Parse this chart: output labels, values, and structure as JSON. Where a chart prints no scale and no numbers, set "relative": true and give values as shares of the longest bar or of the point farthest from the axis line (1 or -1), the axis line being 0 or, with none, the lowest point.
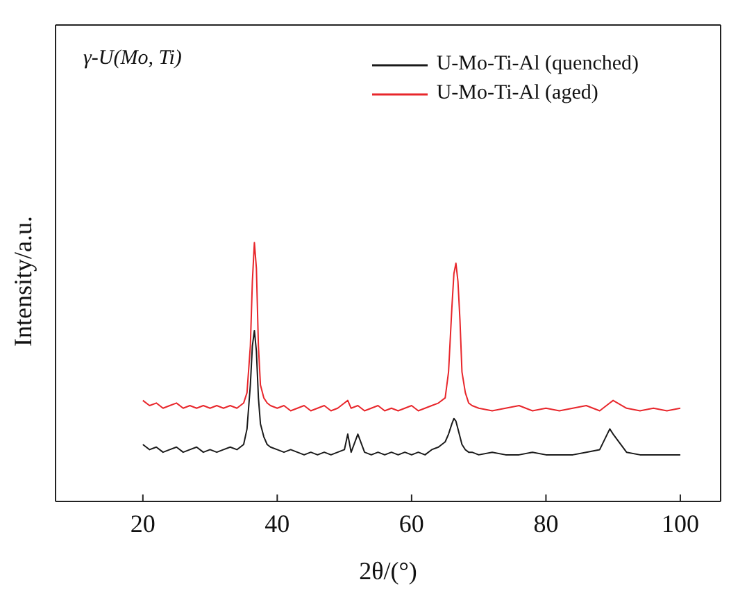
{
  "chart_data": {
    "type": "line",
    "relative": true,
    "xlabel": "2θ/(°)",
    "ylabel": "Intensity/a.u.",
    "annotations": [
      "γ-U(Mo, Ti)"
    ],
    "xlim": [
      7,
      106
    ],
    "xticks": [
      20,
      40,
      60,
      80,
      100
    ],
    "legend": "top right",
    "marker": "none",
    "x": [
      20,
      21,
      22,
      23,
      24,
      25,
      26,
      27,
      28,
      29,
      30,
      31,
      32,
      33,
      34,
      35,
      35.5,
      36,
      36.3,
      36.6,
      36.9,
      37.2,
      37.5,
      38,
      38.5,
      39,
      40,
      41,
      42,
      43,
      44,
      45,
      46,
      47,
      48,
      49,
      50,
      50.5,
      51,
      52,
      53,
      54,
      55,
      56,
      57,
      58,
      59,
      60,
      61,
      62,
      63,
      64,
      65,
      65.5,
      66,
      66.3,
      66.6,
      66.9,
      67.2,
      67.5,
      68,
      68.5,
      69,
      70,
      72,
      74,
      76,
      78,
      80,
      82,
      84,
      86,
      88,
      89.5,
      90,
      92,
      94,
      96,
      98,
      100
    ],
    "series": [
      {
        "name": "U-Mo-Ti-Al (quenched)",
        "color": "#1a1a1a",
        "values": [
          0.22,
          0.2,
          0.21,
          0.19,
          0.2,
          0.21,
          0.19,
          0.2,
          0.21,
          0.19,
          0.2,
          0.19,
          0.2,
          0.21,
          0.2,
          0.22,
          0.28,
          0.45,
          0.6,
          0.66,
          0.58,
          0.4,
          0.3,
          0.25,
          0.22,
          0.21,
          0.2,
          0.19,
          0.2,
          0.19,
          0.18,
          0.19,
          0.18,
          0.19,
          0.18,
          0.19,
          0.2,
          0.26,
          0.19,
          0.26,
          0.19,
          0.18,
          0.19,
          0.18,
          0.19,
          0.18,
          0.19,
          0.18,
          0.19,
          0.18,
          0.2,
          0.21,
          0.23,
          0.26,
          0.3,
          0.32,
          0.31,
          0.28,
          0.25,
          0.22,
          0.2,
          0.19,
          0.19,
          0.18,
          0.19,
          0.18,
          0.18,
          0.19,
          0.18,
          0.18,
          0.18,
          0.19,
          0.2,
          0.28,
          0.26,
          0.19,
          0.18,
          0.18,
          0.18,
          0.18
        ]
      },
      {
        "name": "U-Mo-Ti-Al (aged)",
        "color": "#e8262b",
        "values": [
          0.39,
          0.37,
          0.38,
          0.36,
          0.37,
          0.38,
          0.36,
          0.37,
          0.36,
          0.37,
          0.36,
          0.37,
          0.36,
          0.37,
          0.36,
          0.38,
          0.42,
          0.6,
          0.85,
          1,
          0.9,
          0.6,
          0.45,
          0.4,
          0.38,
          0.37,
          0.36,
          0.37,
          0.35,
          0.36,
          0.37,
          0.35,
          0.36,
          0.37,
          0.35,
          0.36,
          0.38,
          0.39,
          0.36,
          0.37,
          0.35,
          0.36,
          0.37,
          0.35,
          0.36,
          0.35,
          0.36,
          0.37,
          0.35,
          0.36,
          0.37,
          0.38,
          0.4,
          0.5,
          0.75,
          0.88,
          0.92,
          0.85,
          0.7,
          0.5,
          0.42,
          0.38,
          0.37,
          0.36,
          0.35,
          0.36,
          0.37,
          0.35,
          0.36,
          0.35,
          0.36,
          0.37,
          0.35,
          0.38,
          0.39,
          0.36,
          0.35,
          0.36,
          0.35,
          0.36
        ]
      }
    ]
  }
}
